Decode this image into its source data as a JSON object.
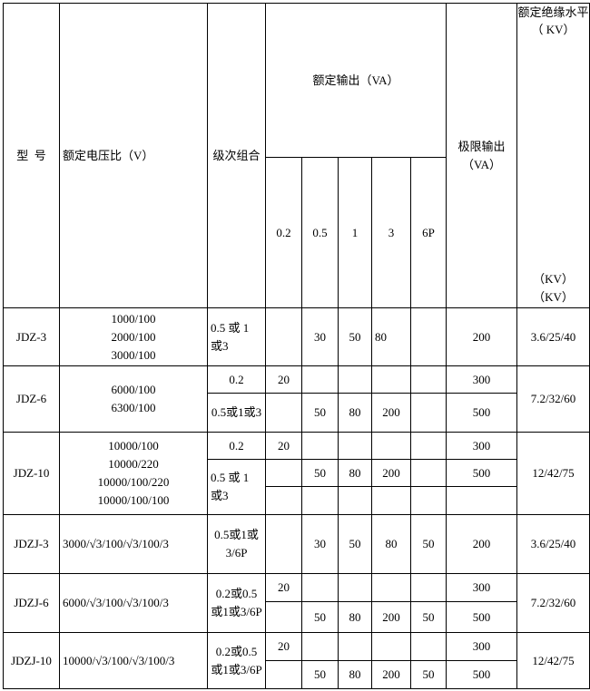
{
  "header": {
    "model": "型  号",
    "voltage_ratio": "额定电压比（V）",
    "class_combo": "级次组合",
    "rated_output": "额定输出（VA）",
    "rated_output_classes": [
      "0.2",
      "0.5",
      "1",
      "3",
      "6P"
    ],
    "limit_output": "极限输出（VA）",
    "insulation_top": "额定绝缘水平（ KV）",
    "insulation_bottom": [
      "（KV）",
      "（KV）"
    ]
  },
  "rows": {
    "jdz3": {
      "model": "JDZ-3",
      "voltage": "1000/100\n2000/100\n3000/100",
      "class": "0.5 或 1 或3",
      "o02": "",
      "o05": "30",
      "o1": "50",
      "o3": "80",
      "o6p": "",
      "limit": "200",
      "insulation": "3.6/25/40"
    },
    "jdz6": {
      "model": "JDZ-6",
      "voltage": "6000/100\n6300/100",
      "insulation": "7.2/32/60",
      "sub": [
        {
          "class": "0.2",
          "o02": "20",
          "limit": "300"
        },
        {
          "class": "0.5或1或3",
          "o05": "50",
          "o1": "80",
          "o3": "200",
          "limit": "500"
        }
      ]
    },
    "jdz10": {
      "model": "JDZ-10",
      "voltage": "10000/100\n10000/220\n10000/100/220\n10000/100/100",
      "insulation": "12/42/75",
      "sub": [
        {
          "class": "0.2",
          "o02": "20",
          "limit": "300"
        },
        {
          "class": "0.5 或 1 或3",
          "o05": "50",
          "o1": "80",
          "o3": "200",
          "limit": "500"
        }
      ]
    },
    "jdzj3": {
      "model": "JDZJ-3",
      "voltage": "3000/√3/100/√3/100/3",
      "class": "0.5或1或3/6P",
      "o05": "30",
      "o1": "50",
      "o3": "80",
      "o6p": "50",
      "limit": "200",
      "insulation": "3.6/25/40"
    },
    "jdzj6": {
      "model": "JDZJ-6",
      "voltage": "6000/√3/100/√3/100/3",
      "class": "0.2或0.5或1或3/6P",
      "insulation": "7.2/32/60",
      "sub": [
        {
          "o02": "20",
          "limit": "300"
        },
        {
          "o05": "50",
          "o1": "80",
          "o3": "200",
          "o6p": "50",
          "limit": "500"
        }
      ]
    },
    "jdzj10": {
      "model": "JDZJ-10",
      "voltage": "10000/√3/100/√3/100/3",
      "class": "0.2或0.5或1或3/6P",
      "insulation": "12/42/75",
      "sub": [
        {
          "o02": "20",
          "limit": "300"
        },
        {
          "o05": "50",
          "o1": "80",
          "o3": "200",
          "o6p": "50",
          "limit": "500"
        }
      ]
    }
  }
}
